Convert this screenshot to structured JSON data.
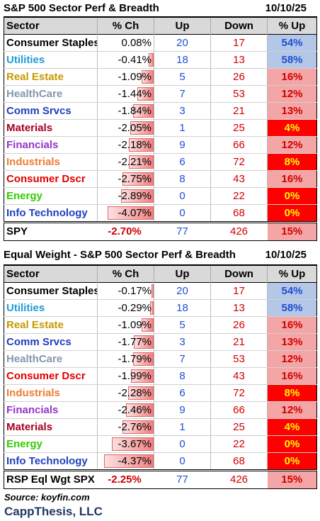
{
  "table1": {
    "title": "S&P 500 Sector Perf & Breadth",
    "date": "10/10/25",
    "headers": [
      "Sector",
      "% Ch",
      "Up",
      "Down",
      "% Up"
    ],
    "rows": [
      {
        "sector": "Consumer Staples",
        "pct": "0.08%",
        "pct_value": 0.08,
        "up": "20",
        "down": "17",
        "pct_up": "54%",
        "sector_color": "#000000",
        "pct_up_color": "#1f4fd1",
        "pct_up_bg": "#b4c7e7"
      },
      {
        "sector": "Utilities",
        "pct": "-0.41%",
        "pct_value": -0.41,
        "up": "18",
        "down": "13",
        "pct_up": "58%",
        "sector_color": "#1e9ad6",
        "pct_up_color": "#1f4fd1",
        "pct_up_bg": "#b4c7e7"
      },
      {
        "sector": "Real Estate",
        "pct": "-1.09%",
        "pct_value": -1.09,
        "up": "5",
        "down": "26",
        "pct_up": "16%",
        "sector_color": "#c59a00",
        "pct_up_color": "#d00000",
        "pct_up_bg": "#f4a6a6"
      },
      {
        "sector": "HealthCare",
        "pct": "-1.44%",
        "pct_value": -1.44,
        "up": "7",
        "down": "53",
        "pct_up": "12%",
        "sector_color": "#8497b0",
        "pct_up_color": "#d00000",
        "pct_up_bg": "#f4a6a6"
      },
      {
        "sector": "Comm Srvcs",
        "pct": "-1.84%",
        "pct_value": -1.84,
        "up": "3",
        "down": "21",
        "pct_up": "13%",
        "sector_color": "#1f3fbf",
        "pct_up_color": "#d00000",
        "pct_up_bg": "#f4a6a6"
      },
      {
        "sector": "Materials",
        "pct": "-2.05%",
        "pct_value": -2.05,
        "up": "1",
        "down": "25",
        "pct_up": "4%",
        "sector_color": "#a50021",
        "pct_up_color": "#ffff00",
        "pct_up_bg": "#ff0000"
      },
      {
        "sector": "Financials",
        "pct": "-2.18%",
        "pct_value": -2.18,
        "up": "9",
        "down": "66",
        "pct_up": "12%",
        "sector_color": "#9933cc",
        "pct_up_color": "#d00000",
        "pct_up_bg": "#f4a6a6"
      },
      {
        "sector": "Industrials",
        "pct": "-2.21%",
        "pct_value": -2.21,
        "up": "6",
        "down": "72",
        "pct_up": "8%",
        "sector_color": "#ed7d31",
        "pct_up_color": "#ffff00",
        "pct_up_bg": "#ff0000"
      },
      {
        "sector": "Consumer Dscr",
        "pct": "-2.75%",
        "pct_value": -2.75,
        "up": "8",
        "down": "43",
        "pct_up": "16%",
        "sector_color": "#e00000",
        "pct_up_color": "#d00000",
        "pct_up_bg": "#f4a6a6"
      },
      {
        "sector": "Energy",
        "pct": "-2.89%",
        "pct_value": -2.89,
        "up": "0",
        "down": "22",
        "pct_up": "0%",
        "sector_color": "#33cc00",
        "pct_up_color": "#ffff00",
        "pct_up_bg": "#ff0000"
      },
      {
        "sector": "Info Technology",
        "pct": "-4.07%",
        "pct_value": -4.07,
        "up": "0",
        "down": "68",
        "pct_up": "0%",
        "sector_color": "#1f3fbf",
        "pct_up_color": "#ffff00",
        "pct_up_bg": "#ff0000"
      }
    ],
    "total": {
      "label": "SPY",
      "pct": "-2.70%",
      "up": "77",
      "down": "426",
      "pct_up": "15%"
    }
  },
  "table2": {
    "title": "Equal Weight - S&P 500 Sector Perf & Breadth",
    "date": "10/10/25",
    "headers": [
      "Sector",
      "% Ch",
      "Up",
      "Down",
      "% Up"
    ],
    "rows": [
      {
        "sector": "Consumer Staples",
        "pct": "-0.17%",
        "pct_value": -0.17,
        "up": "20",
        "down": "17",
        "pct_up": "54%",
        "sector_color": "#000000",
        "pct_up_color": "#1f4fd1",
        "pct_up_bg": "#b4c7e7"
      },
      {
        "sector": "Utilities",
        "pct": "-0.29%",
        "pct_value": -0.29,
        "up": "18",
        "down": "13",
        "pct_up": "58%",
        "sector_color": "#1e9ad6",
        "pct_up_color": "#1f4fd1",
        "pct_up_bg": "#b4c7e7"
      },
      {
        "sector": "Real Estate",
        "pct": "-1.09%",
        "pct_value": -1.09,
        "up": "5",
        "down": "26",
        "pct_up": "16%",
        "sector_color": "#c59a00",
        "pct_up_color": "#d00000",
        "pct_up_bg": "#f4a6a6"
      },
      {
        "sector": "Comm Srvcs",
        "pct": "-1.77%",
        "pct_value": -1.77,
        "up": "3",
        "down": "21",
        "pct_up": "13%",
        "sector_color": "#1f3fbf",
        "pct_up_color": "#d00000",
        "pct_up_bg": "#f4a6a6"
      },
      {
        "sector": "HealthCare",
        "pct": "-1.79%",
        "pct_value": -1.79,
        "up": "7",
        "down": "53",
        "pct_up": "12%",
        "sector_color": "#8497b0",
        "pct_up_color": "#d00000",
        "pct_up_bg": "#f4a6a6"
      },
      {
        "sector": "Consumer Dscr",
        "pct": "-1.99%",
        "pct_value": -1.99,
        "up": "8",
        "down": "43",
        "pct_up": "16%",
        "sector_color": "#e00000",
        "pct_up_color": "#d00000",
        "pct_up_bg": "#f4a6a6"
      },
      {
        "sector": "Industrials",
        "pct": "-2.28%",
        "pct_value": -2.28,
        "up": "6",
        "down": "72",
        "pct_up": "8%",
        "sector_color": "#ed7d31",
        "pct_up_color": "#ffff00",
        "pct_up_bg": "#ff0000"
      },
      {
        "sector": "Financials",
        "pct": "-2.46%",
        "pct_value": -2.46,
        "up": "9",
        "down": "66",
        "pct_up": "12%",
        "sector_color": "#9933cc",
        "pct_up_color": "#d00000",
        "pct_up_bg": "#f4a6a6"
      },
      {
        "sector": "Materials",
        "pct": "-2.76%",
        "pct_value": -2.76,
        "up": "1",
        "down": "25",
        "pct_up": "4%",
        "sector_color": "#a50021",
        "pct_up_color": "#ffff00",
        "pct_up_bg": "#ff0000"
      },
      {
        "sector": "Energy",
        "pct": "-3.67%",
        "pct_value": -3.67,
        "up": "0",
        "down": "22",
        "pct_up": "0%",
        "sector_color": "#33cc00",
        "pct_up_color": "#ffff00",
        "pct_up_bg": "#ff0000"
      },
      {
        "sector": "Info Technology",
        "pct": "-4.37%",
        "pct_value": -4.37,
        "up": "0",
        "down": "68",
        "pct_up": "0%",
        "sector_color": "#1f3fbf",
        "pct_up_color": "#ffff00",
        "pct_up_bg": "#ff0000"
      }
    ],
    "total": {
      "label": "RSP Eql Wgt SPX",
      "pct": "-2.25%",
      "up": "77",
      "down": "426",
      "pct_up": "15%"
    }
  },
  "footer": {
    "source": "Source: koyfin.com",
    "brand": "CappThesis, LLC"
  },
  "colors": {
    "up_blue": "#1f4fd1",
    "down_red": "#d00000",
    "header_gray": "#d9d9d9",
    "brand_navy": "#1f3864",
    "total_pct_up_bg": "#f4a6a6"
  }
}
